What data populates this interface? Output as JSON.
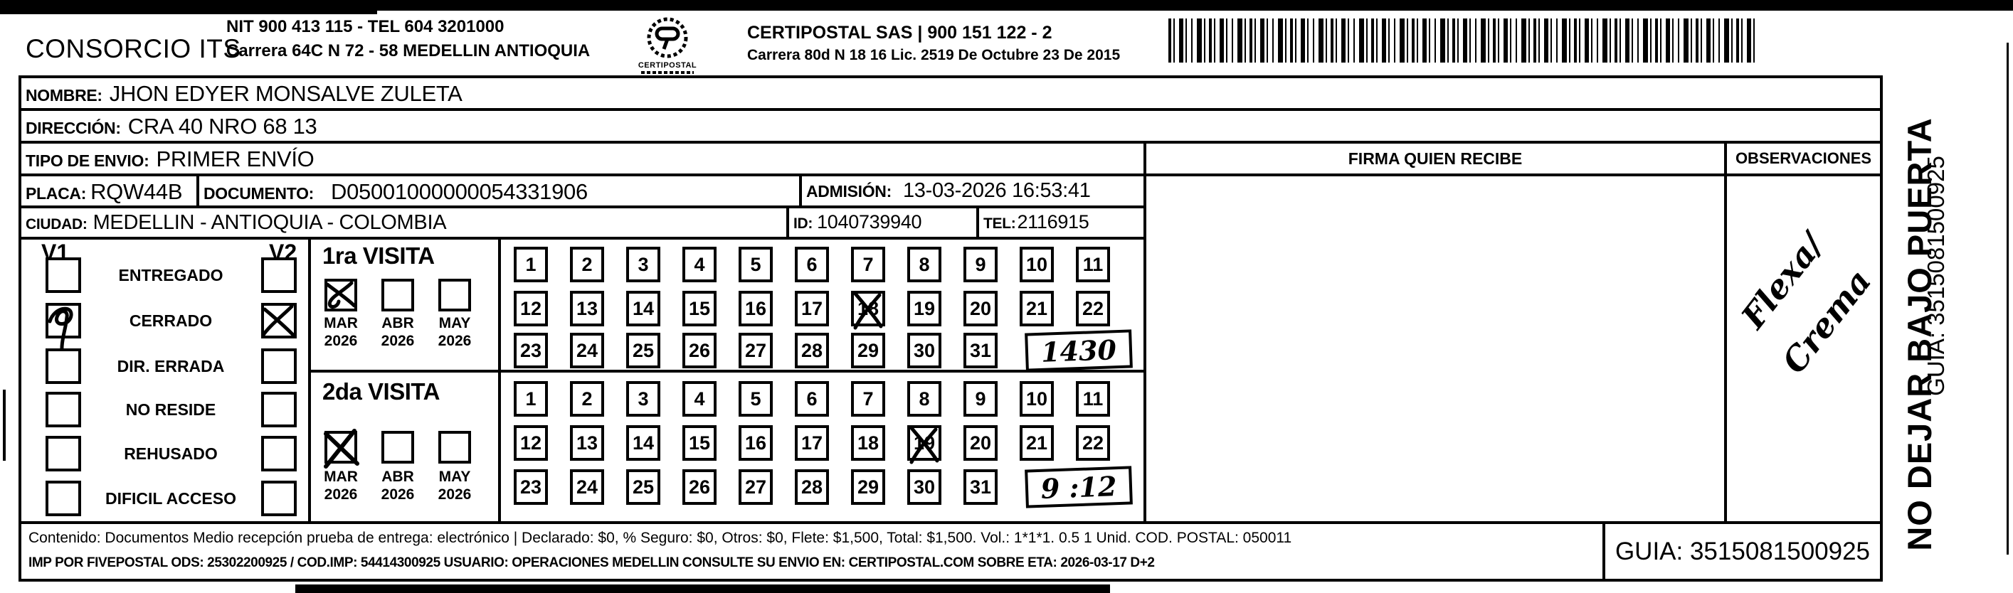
{
  "header": {
    "company": "CONSORCIO ITS",
    "nit_line": "NIT 900 413 115 - TEL 604 3201000",
    "address_line": "Carrera 64C N 72 - 58 MEDELLIN ANTIOQUIA",
    "logo_text": "CERTIPOSTAL",
    "certipostal_line": "CERTIPOSTAL SAS | 900 151 122 - 2",
    "certipostal_address": "Carrera 80d N 18 16  Lic. 2519 De Octubre 23 De 2015"
  },
  "recipient": {
    "nombre_label": "NOMBRE:",
    "nombre": "JHON EDYER MONSALVE ZULETA",
    "direccion_label": "DIRECCIÓN:",
    "direccion": "CRA 40 NRO 68 13",
    "tipo_envio_label": "TIPO DE ENVIO:",
    "tipo_envio": "PRIMER ENVÍO",
    "placa_label": "PLACA:",
    "placa": "RQW44B",
    "documento_label": "DOCUMENTO:",
    "documento": "D05001000000054331906",
    "admision_label": "ADMISIÓN:",
    "admision": "13-03-2026 16:53:41",
    "ciudad_label": "CIUDAD:",
    "ciudad": "MEDELLIN - ANTIOQUIA - COLOMBIA",
    "id_label": "ID:",
    "id": "1040739940",
    "tel_label": "TEL:",
    "tel": "2116915"
  },
  "columns": {
    "firma_header": "FIRMA QUIEN RECIBE",
    "observaciones_header": "OBSERVACIONES",
    "observaciones_note_word1": "Flexa/",
    "observaciones_note_word2": "Crema"
  },
  "status_panel": {
    "v1_label": "V1",
    "v2_label": "V2",
    "items": [
      {
        "label": "ENTREGADO",
        "v1_mark": null,
        "v2_mark": null
      },
      {
        "label": "CERRADO",
        "v1_mark": "loop",
        "v2_mark": "x"
      },
      {
        "label": "DIR. ERRADA",
        "v1_mark": null,
        "v2_mark": null
      },
      {
        "label": "NO RESIDE",
        "v1_mark": null,
        "v2_mark": null
      },
      {
        "label": "REHUSADO",
        "v1_mark": null,
        "v2_mark": null
      },
      {
        "label": "DIFICIL ACCESO",
        "v1_mark": null,
        "v2_mark": null
      }
    ]
  },
  "visits": {
    "day_rows": [
      [
        "1",
        "2",
        "3",
        "4",
        "5",
        "6",
        "7",
        "8",
        "9",
        "10",
        "11"
      ],
      [
        "12",
        "13",
        "14",
        "15",
        "16",
        "17",
        "18",
        "19",
        "20",
        "21",
        "22"
      ],
      [
        "23",
        "24",
        "25",
        "26",
        "27",
        "28",
        "29",
        "30",
        "31"
      ]
    ],
    "first": {
      "title": "1ra VISITA",
      "months": [
        {
          "month": "MAR",
          "year": "2026",
          "mark": "scribble"
        },
        {
          "month": "ABR",
          "year": "2026",
          "mark": null
        },
        {
          "month": "MAY",
          "year": "2026",
          "mark": null
        }
      ],
      "marked_day": "18",
      "time_note": "1430"
    },
    "second": {
      "title": "2da VISITA",
      "months": [
        {
          "month": "MAR",
          "year": "2026",
          "mark": "xbig"
        },
        {
          "month": "ABR",
          "year": "2026",
          "mark": null
        },
        {
          "month": "MAY",
          "year": "2026",
          "mark": null
        }
      ],
      "marked_day": "19",
      "time_note": "9 :12"
    }
  },
  "footer": {
    "line1": "Contenido: Documentos Medio recepción prueba de entrega: electrónico | Declarado: $0, % Seguro: $0, Otros: $0, Flete: $1,500, Total: $1,500. Vol.: 1*1*1. 0.5  1 Unid. COD. POSTAL: 050011",
    "line2": "IMP POR FIVEPOSTAL ODS: 25302200925 / COD.IMP: 54414300925 USUARIO: OPERACIONES MEDELLIN CONSULTE SU ENVIO EN: CERTIPOSTAL.COM SOBRE ETA: 2026-03-17 D+2",
    "guia": "GUIA: 3515081500925"
  },
  "sidebar": {
    "no_dejar": "NO DEJAR BAJO PUERTA",
    "guia_vertical": "GUIA: 3515081500925"
  },
  "colors": {
    "ink": "#000000",
    "paper": "#ffffff"
  }
}
